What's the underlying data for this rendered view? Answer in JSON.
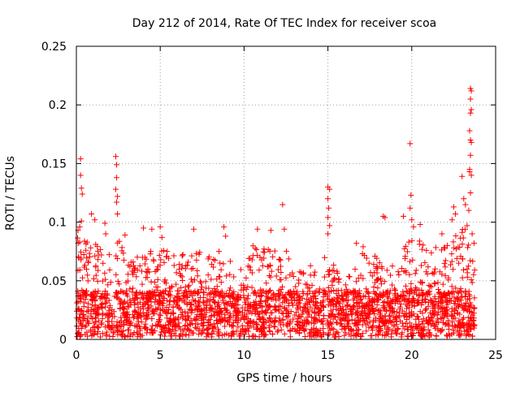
{
  "chart_data": {
    "type": "scatter",
    "title": "Day 212 of 2014, Rate Of TEC Index for receiver scoa",
    "xlabel": "GPS time / hours",
    "ylabel": "ROTI / TECUs",
    "xlim": [
      0,
      25
    ],
    "ylim": [
      0,
      0.25
    ],
    "x_ticks": [
      "0",
      "5",
      "10",
      "15",
      "20",
      "25"
    ],
    "y_ticks": [
      "0",
      "0.05",
      "0.1",
      "0.15",
      "0.2",
      "0.25"
    ],
    "grid": true,
    "legend": "none",
    "marker": "+",
    "color": "#ff0000",
    "data_extent_hours": [
      0.0,
      23.75
    ],
    "background_band": [
      0.002,
      0.055
    ],
    "notable_points": [
      {
        "x": 0.25,
        "y": 0.154
      },
      {
        "x": 0.25,
        "y": 0.14
      },
      {
        "x": 0.3,
        "y": 0.129
      },
      {
        "x": 0.35,
        "y": 0.124
      },
      {
        "x": 0.3,
        "y": 0.101
      },
      {
        "x": 0.2,
        "y": 0.096
      },
      {
        "x": 0.1,
        "y": 0.093
      },
      {
        "x": 0.9,
        "y": 0.107
      },
      {
        "x": 1.1,
        "y": 0.102
      },
      {
        "x": 1.7,
        "y": 0.099
      },
      {
        "x": 1.75,
        "y": 0.09
      },
      {
        "x": 2.35,
        "y": 0.156
      },
      {
        "x": 2.4,
        "y": 0.149
      },
      {
        "x": 2.4,
        "y": 0.138
      },
      {
        "x": 2.35,
        "y": 0.128
      },
      {
        "x": 2.45,
        "y": 0.122
      },
      {
        "x": 2.4,
        "y": 0.117
      },
      {
        "x": 2.45,
        "y": 0.107
      },
      {
        "x": 2.9,
        "y": 0.089
      },
      {
        "x": 4.0,
        "y": 0.095
      },
      {
        "x": 4.5,
        "y": 0.094
      },
      {
        "x": 5.0,
        "y": 0.096
      },
      {
        "x": 5.1,
        "y": 0.087
      },
      {
        "x": 7.0,
        "y": 0.094
      },
      {
        "x": 8.8,
        "y": 0.096
      },
      {
        "x": 8.9,
        "y": 0.088
      },
      {
        "x": 10.8,
        "y": 0.094
      },
      {
        "x": 11.6,
        "y": 0.093
      },
      {
        "x": 12.3,
        "y": 0.115
      },
      {
        "x": 12.4,
        "y": 0.094
      },
      {
        "x": 15.0,
        "y": 0.13
      },
      {
        "x": 15.1,
        "y": 0.128
      },
      {
        "x": 15.0,
        "y": 0.12
      },
      {
        "x": 15.05,
        "y": 0.112
      },
      {
        "x": 15.0,
        "y": 0.104
      },
      {
        "x": 15.1,
        "y": 0.097
      },
      {
        "x": 15.0,
        "y": 0.09
      },
      {
        "x": 16.7,
        "y": 0.082
      },
      {
        "x": 17.1,
        "y": 0.079
      },
      {
        "x": 18.3,
        "y": 0.105
      },
      {
        "x": 18.4,
        "y": 0.104
      },
      {
        "x": 19.5,
        "y": 0.105
      },
      {
        "x": 19.9,
        "y": 0.167
      },
      {
        "x": 19.95,
        "y": 0.123
      },
      {
        "x": 19.9,
        "y": 0.112
      },
      {
        "x": 20.0,
        "y": 0.102
      },
      {
        "x": 20.1,
        "y": 0.096
      },
      {
        "x": 20.5,
        "y": 0.098
      },
      {
        "x": 21.8,
        "y": 0.09
      },
      {
        "x": 22.5,
        "y": 0.113
      },
      {
        "x": 22.6,
        "y": 0.107
      },
      {
        "x": 22.4,
        "y": 0.102
      },
      {
        "x": 23.0,
        "y": 0.139
      },
      {
        "x": 23.1,
        "y": 0.12
      },
      {
        "x": 23.2,
        "y": 0.115
      },
      {
        "x": 23.3,
        "y": 0.097
      },
      {
        "x": 23.45,
        "y": 0.143
      },
      {
        "x": 23.5,
        "y": 0.214
      },
      {
        "x": 23.55,
        "y": 0.212
      },
      {
        "x": 23.5,
        "y": 0.205
      },
      {
        "x": 23.55,
        "y": 0.196
      },
      {
        "x": 23.5,
        "y": 0.193
      },
      {
        "x": 23.45,
        "y": 0.178
      },
      {
        "x": 23.5,
        "y": 0.17
      },
      {
        "x": 23.55,
        "y": 0.168
      },
      {
        "x": 23.5,
        "y": 0.157
      },
      {
        "x": 23.45,
        "y": 0.145
      },
      {
        "x": 23.55,
        "y": 0.14
      },
      {
        "x": 23.5,
        "y": 0.125
      },
      {
        "x": 23.4,
        "y": 0.11
      },
      {
        "x": 23.6,
        "y": 0.09
      }
    ],
    "envelope": [
      {
        "x": 0.0,
        "y": 0.09
      },
      {
        "x": 0.5,
        "y": 0.085
      },
      {
        "x": 1.0,
        "y": 0.082
      },
      {
        "x": 1.5,
        "y": 0.08
      },
      {
        "x": 2.0,
        "y": 0.075
      },
      {
        "x": 2.5,
        "y": 0.085
      },
      {
        "x": 3.0,
        "y": 0.078
      },
      {
        "x": 3.5,
        "y": 0.07
      },
      {
        "x": 4.0,
        "y": 0.082
      },
      {
        "x": 4.5,
        "y": 0.075
      },
      {
        "x": 5.0,
        "y": 0.085
      },
      {
        "x": 5.5,
        "y": 0.075
      },
      {
        "x": 6.0,
        "y": 0.07
      },
      {
        "x": 6.5,
        "y": 0.074
      },
      {
        "x": 7.0,
        "y": 0.082
      },
      {
        "x": 7.5,
        "y": 0.072
      },
      {
        "x": 8.0,
        "y": 0.072
      },
      {
        "x": 8.5,
        "y": 0.078
      },
      {
        "x": 9.0,
        "y": 0.082
      },
      {
        "x": 9.5,
        "y": 0.068
      },
      {
        "x": 10.0,
        "y": 0.065
      },
      {
        "x": 10.5,
        "y": 0.08
      },
      {
        "x": 11.0,
        "y": 0.08
      },
      {
        "x": 11.5,
        "y": 0.082
      },
      {
        "x": 12.0,
        "y": 0.084
      },
      {
        "x": 12.5,
        "y": 0.08
      },
      {
        "x": 13.0,
        "y": 0.06
      },
      {
        "x": 13.5,
        "y": 0.065
      },
      {
        "x": 14.0,
        "y": 0.064
      },
      {
        "x": 14.5,
        "y": 0.066
      },
      {
        "x": 15.0,
        "y": 0.075
      },
      {
        "x": 15.5,
        "y": 0.06
      },
      {
        "x": 16.0,
        "y": 0.052
      },
      {
        "x": 16.5,
        "y": 0.056
      },
      {
        "x": 17.0,
        "y": 0.074
      },
      {
        "x": 17.5,
        "y": 0.07
      },
      {
        "x": 18.0,
        "y": 0.072
      },
      {
        "x": 18.5,
        "y": 0.07
      },
      {
        "x": 19.0,
        "y": 0.078
      },
      {
        "x": 19.5,
        "y": 0.08
      },
      {
        "x": 20.0,
        "y": 0.088
      },
      {
        "x": 20.5,
        "y": 0.085
      },
      {
        "x": 21.0,
        "y": 0.08
      },
      {
        "x": 21.5,
        "y": 0.082
      },
      {
        "x": 22.0,
        "y": 0.08
      },
      {
        "x": 22.5,
        "y": 0.09
      },
      {
        "x": 23.0,
        "y": 0.095
      },
      {
        "x": 23.5,
        "y": 0.092
      },
      {
        "x": 23.75,
        "y": 0.085
      }
    ]
  }
}
